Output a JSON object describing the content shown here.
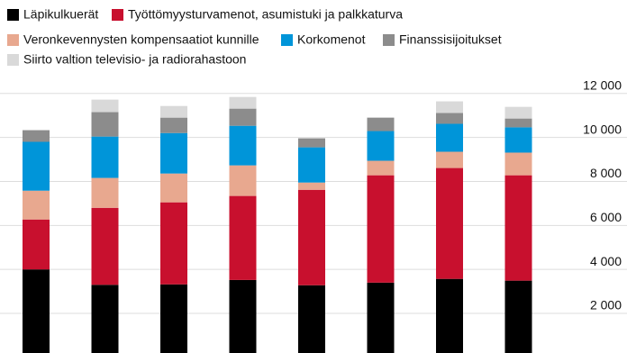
{
  "chart_data": {
    "type": "stacked-bar",
    "categories": [
      null,
      null,
      null,
      null,
      null,
      null,
      null,
      null
    ],
    "series": [
      {
        "name": "Läpikulkuerät",
        "color": "#000000",
        "values": [
          4000,
          3300,
          3320,
          3520,
          3280,
          3400,
          3570,
          3490
        ]
      },
      {
        "name": "Työttömyysturvamenot, asumistuki ja palkkaturva",
        "color": "#c8102e",
        "values": [
          2270,
          3500,
          3730,
          3820,
          4340,
          4880,
          5040,
          4790
        ]
      },
      {
        "name": "Veronkevennysten kompensaatiot kunnille",
        "color": "#e8a88f",
        "values": [
          1310,
          1360,
          1310,
          1390,
          330,
          660,
          740,
          1030
        ]
      },
      {
        "name": "Korkomenot",
        "color": "#0095d9",
        "values": [
          2220,
          1880,
          1840,
          1800,
          1600,
          1350,
          1270,
          1150
        ]
      },
      {
        "name": "Finanssisijoitukset",
        "color": "#8c8c8c",
        "values": [
          530,
          1110,
          700,
          780,
          410,
          610,
          490,
          400
        ]
      },
      {
        "name": "Siirto valtion televisio- ja radiorahastoon",
        "color": "#d9d9d9",
        "values": [
          null,
          570,
          530,
          530,
          null,
          null,
          530,
          530
        ]
      }
    ],
    "ylim": [
      200,
      12400
    ],
    "yticks": [
      {
        "value": 2000,
        "label": "2 000"
      },
      {
        "value": 4000,
        "label": "4 000"
      },
      {
        "value": 6000,
        "label": "6 000"
      },
      {
        "value": 8000,
        "label": "8 000"
      },
      {
        "value": 10000,
        "label": "10 000"
      },
      {
        "value": 12000,
        "label": "12 000"
      }
    ],
    "grid": true
  }
}
